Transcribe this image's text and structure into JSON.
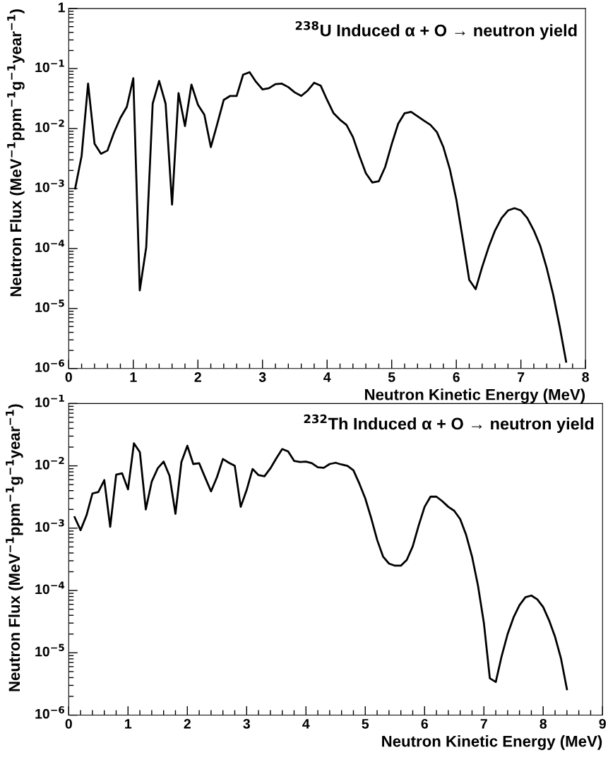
{
  "chart_data": [
    {
      "type": "line",
      "xlabel": "Neutron Kinetic Energy (MeV)",
      "ylabel": "Neutron Flux (MeV$^{−1}$ppm$^{−1}$g$^{−1}$year$^{−1}$)",
      "annotations": [
        "$^{238}$U Induced α + O → neutron yield"
      ],
      "log": "y",
      "xlim": [
        0,
        8
      ],
      "xticks": [
        0,
        1,
        2,
        3,
        4,
        5,
        6,
        7,
        8
      ],
      "ylim": [
        1e-06,
        1
      ],
      "yticks": [
        {
          "value": 1e-06,
          "label": "10$^{−6}$"
        },
        {
          "value": 1e-05,
          "label": "10$^{−5}$"
        },
        {
          "value": 0.0001,
          "label": "10$^{−4}$"
        },
        {
          "value": 0.001,
          "label": "10$^{−3}$"
        },
        {
          "value": 0.01,
          "label": "10$^{−2}$"
        },
        {
          "value": 0.1,
          "label": "10$^{−1}$"
        },
        1
      ],
      "marker": "none",
      "line_style": "solid",
      "series": [
        {
          "color": "#000000",
          "x": [
            0.1,
            0.2,
            0.3,
            0.4,
            0.5,
            0.6,
            0.7,
            0.8,
            0.9,
            1.0,
            1.1,
            1.2,
            1.3,
            1.4,
            1.5,
            1.6,
            1.7,
            1.8,
            1.9,
            2.0,
            2.1,
            2.2,
            2.3,
            2.4,
            2.5,
            2.6,
            2.7,
            2.8,
            2.9,
            3.0,
            3.1,
            3.2,
            3.3,
            3.4,
            3.5,
            3.6,
            3.7,
            3.8,
            3.9,
            4.0,
            4.1,
            4.2,
            4.3,
            4.4,
            4.5,
            4.6,
            4.7,
            4.8,
            4.9,
            5.0,
            5.1,
            5.2,
            5.3,
            5.4,
            5.5,
            5.6,
            5.7,
            5.8,
            5.9,
            6.0,
            6.1,
            6.2,
            6.3,
            6.4,
            6.5,
            6.6,
            6.7,
            6.8,
            6.9,
            7.0,
            7.1,
            7.2,
            7.3,
            7.4,
            7.5,
            7.6,
            7.7
          ],
          "values": [
            0.001,
            0.0035,
            0.056,
            0.0056,
            0.0038,
            0.0043,
            0.0085,
            0.015,
            0.023,
            0.069,
            2e-05,
            0.000105,
            0.026,
            0.062,
            0.026,
            0.00054,
            0.039,
            0.011,
            0.054,
            0.025,
            0.017,
            0.0049,
            0.012,
            0.03,
            0.035,
            0.035,
            0.079,
            0.087,
            0.06,
            0.045,
            0.047,
            0.055,
            0.056,
            0.049,
            0.04,
            0.035,
            0.043,
            0.058,
            0.052,
            0.03,
            0.018,
            0.014,
            0.0115,
            0.0072,
            0.0035,
            0.0018,
            0.00126,
            0.00132,
            0.0023,
            0.0055,
            0.012,
            0.018,
            0.019,
            0.016,
            0.0135,
            0.0115,
            0.0087,
            0.0049,
            0.0021,
            0.00066,
            0.000145,
            3e-05,
            2.1e-05,
            4.9e-05,
            0.000105,
            0.0002,
            0.00032,
            0.00043,
            0.00047,
            0.00043,
            0.00032,
            0.0002,
            0.00011,
            4.7e-05,
            1.7e-05,
            5e-06,
            1.3e-06
          ]
        }
      ]
    },
    {
      "type": "line",
      "xlabel": "Neutron Kinetic Energy (MeV)",
      "ylabel": "Neutron Flux (MeV$^{−1}$ppm$^{−1}$g$^{−1}$year$^{−1}$)",
      "annotations": [
        "$^{232}$Th Induced α + O → neutron yield"
      ],
      "log": "y",
      "xlim": [
        0,
        9
      ],
      "xticks": [
        0,
        1,
        2,
        3,
        4,
        5,
        6,
        7,
        8,
        9
      ],
      "ylim": [
        1e-06,
        0.1
      ],
      "yticks": [
        {
          "value": 1e-06,
          "label": "10$^{−6}$"
        },
        {
          "value": 1e-05,
          "label": "10$^{−5}$"
        },
        {
          "value": 0.0001,
          "label": "10$^{−4}$"
        },
        {
          "value": 0.001,
          "label": "10$^{−3}$"
        },
        {
          "value": 0.01,
          "label": "10$^{−2}$"
        },
        {
          "value": 0.1,
          "label": "10$^{−1}$"
        }
      ],
      "marker": "none",
      "line_style": "solid",
      "series": [
        {
          "color": "#000000",
          "x": [
            0.1,
            0.2,
            0.3,
            0.4,
            0.5,
            0.6,
            0.7,
            0.8,
            0.9,
            1.0,
            1.1,
            1.2,
            1.3,
            1.4,
            1.5,
            1.6,
            1.7,
            1.8,
            1.9,
            2.0,
            2.1,
            2.2,
            2.3,
            2.4,
            2.5,
            2.6,
            2.7,
            2.8,
            2.9,
            3.0,
            3.1,
            3.2,
            3.3,
            3.4,
            3.5,
            3.6,
            3.7,
            3.8,
            3.9,
            4.0,
            4.1,
            4.2,
            4.3,
            4.4,
            4.5,
            4.6,
            4.7,
            4.8,
            4.9,
            5.0,
            5.1,
            5.2,
            5.3,
            5.4,
            5.5,
            5.6,
            5.7,
            5.8,
            5.9,
            6.0,
            6.1,
            6.2,
            6.3,
            6.4,
            6.5,
            6.6,
            6.7,
            6.8,
            6.9,
            7.0,
            7.1,
            7.2,
            7.3,
            7.4,
            7.5,
            7.6,
            7.7,
            7.8,
            7.9,
            8.0,
            8.1,
            8.2,
            8.3,
            8.4
          ],
          "values": [
            0.0015,
            0.00093,
            0.0016,
            0.0036,
            0.0038,
            0.0059,
            0.00105,
            0.0072,
            0.0076,
            0.0042,
            0.023,
            0.0166,
            0.002,
            0.0056,
            0.0091,
            0.0117,
            0.0069,
            0.0017,
            0.0115,
            0.021,
            0.0107,
            0.011,
            0.0065,
            0.0039,
            0.0066,
            0.0129,
            0.0112,
            0.01,
            0.0022,
            0.0041,
            0.0089,
            0.0071,
            0.0068,
            0.0091,
            0.0132,
            0.0186,
            0.017,
            0.012,
            0.0115,
            0.0117,
            0.011,
            0.0095,
            0.0093,
            0.0107,
            0.0112,
            0.0105,
            0.01,
            0.0085,
            0.0052,
            0.003,
            0.00145,
            0.00065,
            0.00035,
            0.00027,
            0.00025,
            0.00025,
            0.00031,
            0.00051,
            0.0011,
            0.0022,
            0.0032,
            0.0032,
            0.0027,
            0.0022,
            0.0019,
            0.0014,
            0.00078,
            0.00035,
            0.00012,
            3e-05,
            3.9e-06,
            3.4e-06,
            8.9e-06,
            2e-05,
            3.7e-05,
            5.8e-05,
            7.8e-05,
            8.3e-05,
            7.2e-05,
            5.4e-05,
            3.3e-05,
            1.8e-05,
            8.1e-06,
            2.6e-06
          ]
        }
      ]
    }
  ]
}
